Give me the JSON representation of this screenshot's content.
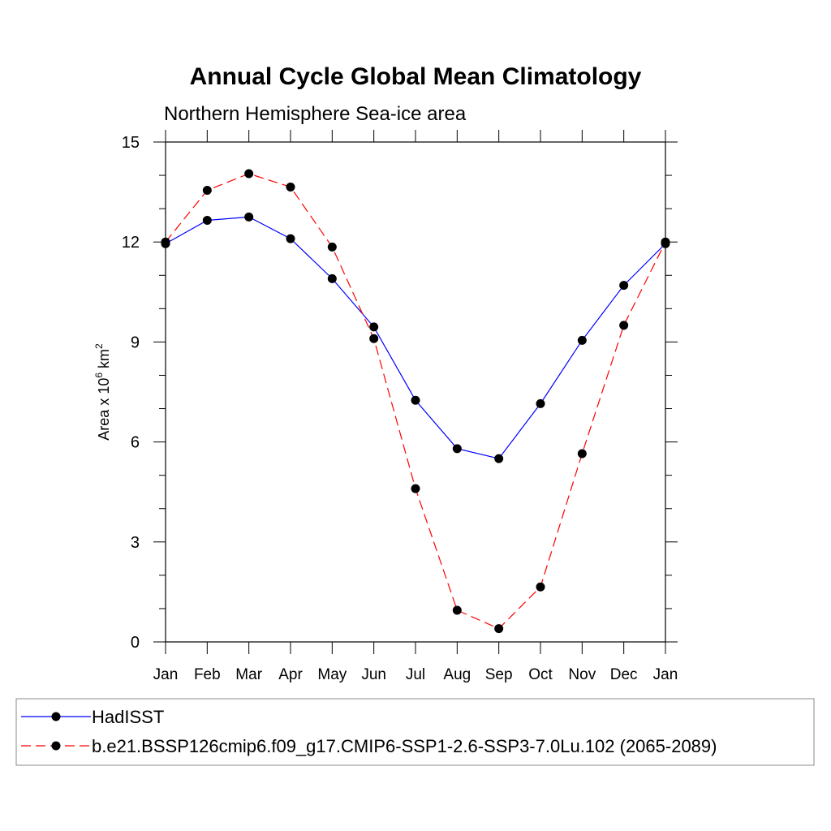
{
  "chart_data": {
    "type": "line",
    "title": "Annual Cycle Global Mean Climatology",
    "subtitle": "Northern Hemisphere Sea-ice area",
    "ylabel": {
      "prefix": "Area x 10",
      "exp1": "6",
      "mid": " km",
      "exp2": "2"
    },
    "xlabel": "",
    "categories": [
      "Jan",
      "Feb",
      "Mar",
      "Apr",
      "May",
      "Jun",
      "Jul",
      "Aug",
      "Sep",
      "Oct",
      "Nov",
      "Dec",
      "Jan"
    ],
    "ylim": [
      0,
      15
    ],
    "yticks": [
      0,
      3,
      6,
      9,
      12,
      15
    ],
    "y_minor_step": 1,
    "grid": false,
    "legend_position": "bottom",
    "series": [
      {
        "name": "HadISST",
        "color": "#0000ff",
        "dashed": false,
        "values": [
          11.95,
          12.65,
          12.75,
          12.1,
          10.9,
          9.45,
          7.25,
          5.8,
          5.5,
          7.15,
          9.05,
          10.7,
          11.95
        ]
      },
      {
        "name": "b.e21.BSSP126cmip6.f09_g17.CMIP6-SSP1-2.6-SSP3-7.0Lu.102 (2065-2089)",
        "color": "#ff0000",
        "dashed": true,
        "values": [
          12.0,
          13.55,
          14.05,
          13.65,
          11.85,
          9.1,
          4.6,
          0.95,
          0.4,
          1.65,
          5.65,
          9.5,
          12.0
        ]
      }
    ]
  }
}
